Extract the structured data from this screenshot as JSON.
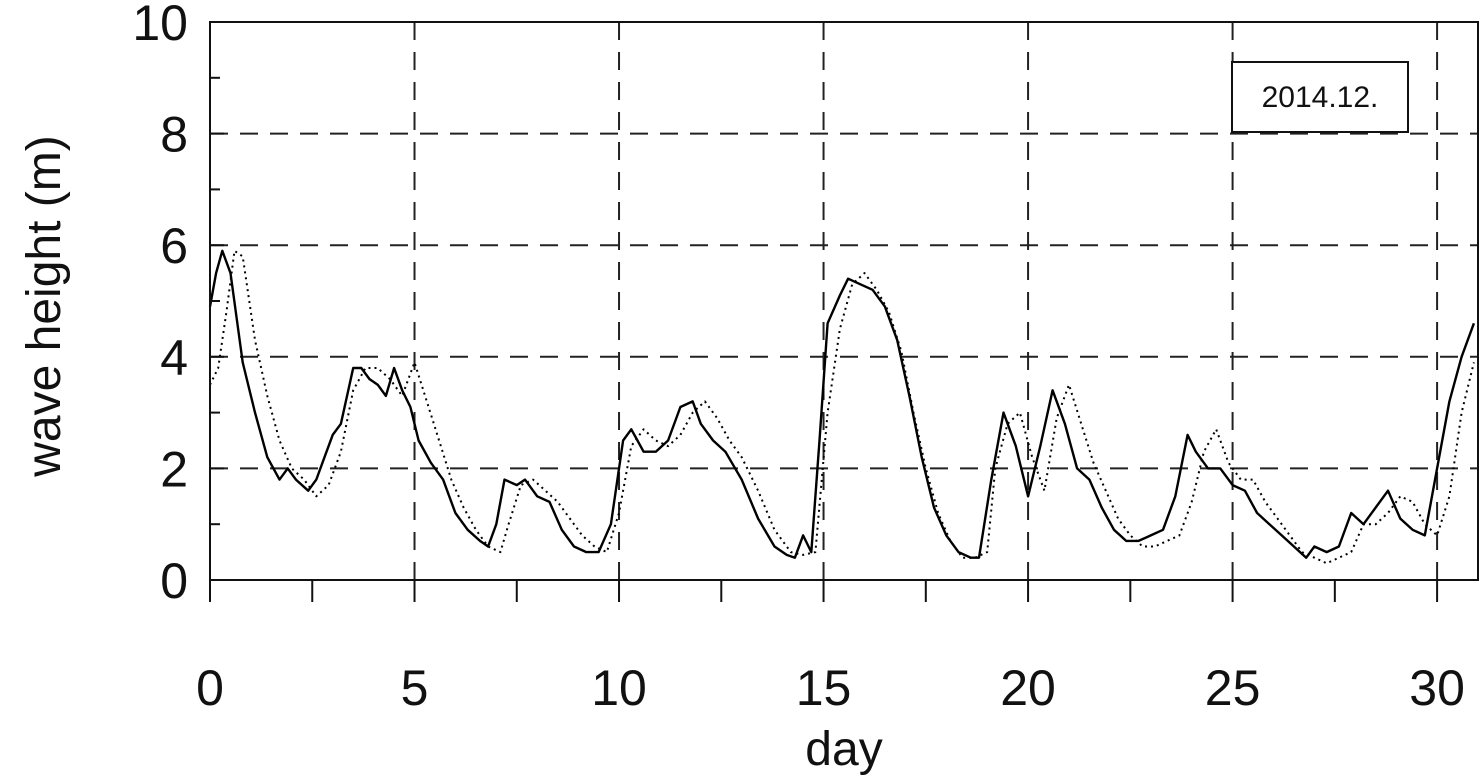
{
  "chart_data": {
    "type": "line",
    "title": "",
    "xlabel": "day",
    "ylabel": "wave height (m)",
    "xlim": [
      0,
      31
    ],
    "ylim": [
      0,
      10
    ],
    "x_ticks": [
      0,
      5,
      10,
      15,
      20,
      25,
      30
    ],
    "x_minor_step": 2.5,
    "y_ticks": [
      0,
      2,
      4,
      6,
      8,
      10
    ],
    "y_minor_step": 1,
    "grid": "dashed",
    "legend": "none",
    "annotation": "2014.12.",
    "series": [
      {
        "style": "solid",
        "color": "#000000",
        "x": [
          0,
          0.15,
          0.3,
          0.5,
          0.8,
          1.1,
          1.4,
          1.7,
          1.9,
          2.1,
          2.4,
          2.6,
          2.8,
          3.0,
          3.2,
          3.5,
          3.7,
          3.9,
          4.1,
          4.3,
          4.5,
          4.7,
          4.9,
          5.1,
          5.4,
          5.7,
          6.0,
          6.3,
          6.6,
          6.8,
          7.0,
          7.2,
          7.5,
          7.7,
          8.0,
          8.3,
          8.6,
          8.9,
          9.2,
          9.5,
          9.8,
          10.1,
          10.3,
          10.6,
          10.9,
          11.2,
          11.5,
          11.8,
          12.0,
          12.3,
          12.6,
          13.0,
          13.4,
          13.8,
          14.1,
          14.3,
          14.5,
          14.7,
          14.9,
          15.1,
          15.4,
          15.6,
          15.9,
          16.2,
          16.5,
          16.8,
          17.1,
          17.4,
          17.7,
          18.0,
          18.3,
          18.6,
          18.8,
          19.1,
          19.4,
          19.7,
          20.0,
          20.3,
          20.6,
          20.9,
          21.2,
          21.5,
          21.8,
          22.1,
          22.4,
          22.7,
          23.0,
          23.3,
          23.6,
          23.9,
          24.1,
          24.4,
          24.7,
          25.0,
          25.3,
          25.6,
          25.9,
          26.2,
          26.5,
          26.8,
          27.0,
          27.3,
          27.6,
          27.9,
          28.2,
          28.5,
          28.8,
          29.1,
          29.4,
          29.7,
          30.0,
          30.3,
          30.6,
          30.9
        ],
        "y": [
          4.9,
          5.5,
          5.9,
          5.5,
          3.9,
          3.0,
          2.2,
          1.8,
          2.0,
          1.8,
          1.6,
          1.8,
          2.2,
          2.6,
          2.8,
          3.8,
          3.8,
          3.6,
          3.5,
          3.3,
          3.8,
          3.4,
          3.1,
          2.5,
          2.1,
          1.8,
          1.2,
          0.9,
          0.7,
          0.6,
          1.0,
          1.8,
          1.7,
          1.8,
          1.5,
          1.4,
          0.9,
          0.6,
          0.5,
          0.5,
          1.0,
          2.5,
          2.7,
          2.3,
          2.3,
          2.5,
          3.1,
          3.2,
          2.8,
          2.5,
          2.3,
          1.8,
          1.1,
          0.6,
          0.45,
          0.4,
          0.8,
          0.5,
          2.5,
          4.6,
          5.1,
          5.4,
          5.3,
          5.2,
          4.9,
          4.3,
          3.3,
          2.2,
          1.3,
          0.8,
          0.5,
          0.4,
          0.4,
          1.8,
          3.0,
          2.4,
          1.5,
          2.4,
          3.4,
          2.8,
          2.0,
          1.8,
          1.3,
          0.9,
          0.7,
          0.7,
          0.8,
          0.9,
          1.5,
          2.6,
          2.3,
          2.0,
          2.0,
          1.7,
          1.6,
          1.2,
          1.0,
          0.8,
          0.6,
          0.4,
          0.6,
          0.5,
          0.6,
          1.2,
          1.0,
          1.3,
          1.6,
          1.1,
          0.9,
          0.8,
          2.0,
          3.2,
          4.0,
          4.6
        ]
      },
      {
        "style": "dotted",
        "color": "#000000",
        "x": [
          0,
          0.2,
          0.4,
          0.6,
          0.8,
          1.1,
          1.4,
          1.7,
          2.0,
          2.3,
          2.6,
          2.9,
          3.2,
          3.5,
          3.8,
          4.1,
          4.4,
          4.7,
          5.0,
          5.3,
          5.6,
          5.9,
          6.2,
          6.5,
          6.8,
          7.1,
          7.3,
          7.6,
          7.9,
          8.2,
          8.5,
          8.8,
          9.1,
          9.4,
          9.7,
          10.0,
          10.3,
          10.6,
          10.9,
          11.2,
          11.5,
          11.8,
          12.1,
          12.4,
          12.7,
          13.0,
          13.4,
          13.8,
          14.2,
          14.5,
          14.8,
          15.1,
          15.4,
          15.7,
          16.0,
          16.3,
          16.6,
          16.9,
          17.2,
          17.5,
          17.8,
          18.1,
          18.4,
          18.7,
          19.0,
          19.2,
          19.5,
          19.8,
          20.1,
          20.4,
          20.7,
          21.0,
          21.3,
          21.6,
          21.9,
          22.2,
          22.5,
          22.8,
          23.1,
          23.4,
          23.7,
          24.0,
          24.3,
          24.6,
          24.9,
          25.2,
          25.5,
          25.8,
          26.1,
          26.4,
          26.7,
          27.0,
          27.3,
          27.6,
          27.9,
          28.2,
          28.5,
          28.8,
          29.1,
          29.4,
          29.7,
          30.0,
          30.3,
          30.6,
          30.9
        ],
        "y": [
          3.5,
          3.8,
          4.8,
          5.9,
          5.8,
          4.3,
          3.3,
          2.5,
          2.0,
          1.8,
          1.5,
          1.7,
          2.3,
          3.4,
          3.8,
          3.8,
          3.6,
          3.3,
          3.9,
          3.2,
          2.5,
          1.8,
          1.3,
          0.9,
          0.6,
          0.5,
          1.0,
          1.7,
          1.8,
          1.6,
          1.4,
          1.1,
          0.8,
          0.6,
          0.5,
          1.2,
          2.4,
          2.7,
          2.5,
          2.4,
          2.6,
          3.0,
          3.2,
          2.9,
          2.5,
          2.2,
          1.6,
          0.9,
          0.5,
          0.45,
          0.5,
          3.0,
          4.5,
          5.3,
          5.5,
          5.2,
          4.8,
          4.1,
          3.0,
          2.0,
          1.2,
          0.7,
          0.4,
          0.4,
          0.5,
          2.0,
          2.8,
          3.0,
          2.2,
          1.6,
          2.9,
          3.5,
          2.8,
          2.1,
          1.6,
          1.1,
          0.8,
          0.6,
          0.6,
          0.7,
          0.8,
          1.4,
          2.3,
          2.7,
          2.1,
          1.8,
          1.8,
          1.4,
          1.1,
          0.8,
          0.5,
          0.4,
          0.3,
          0.4,
          0.5,
          1.0,
          1.0,
          1.2,
          1.5,
          1.4,
          1.0,
          0.8,
          1.5,
          3.0,
          3.9
        ]
      }
    ]
  }
}
